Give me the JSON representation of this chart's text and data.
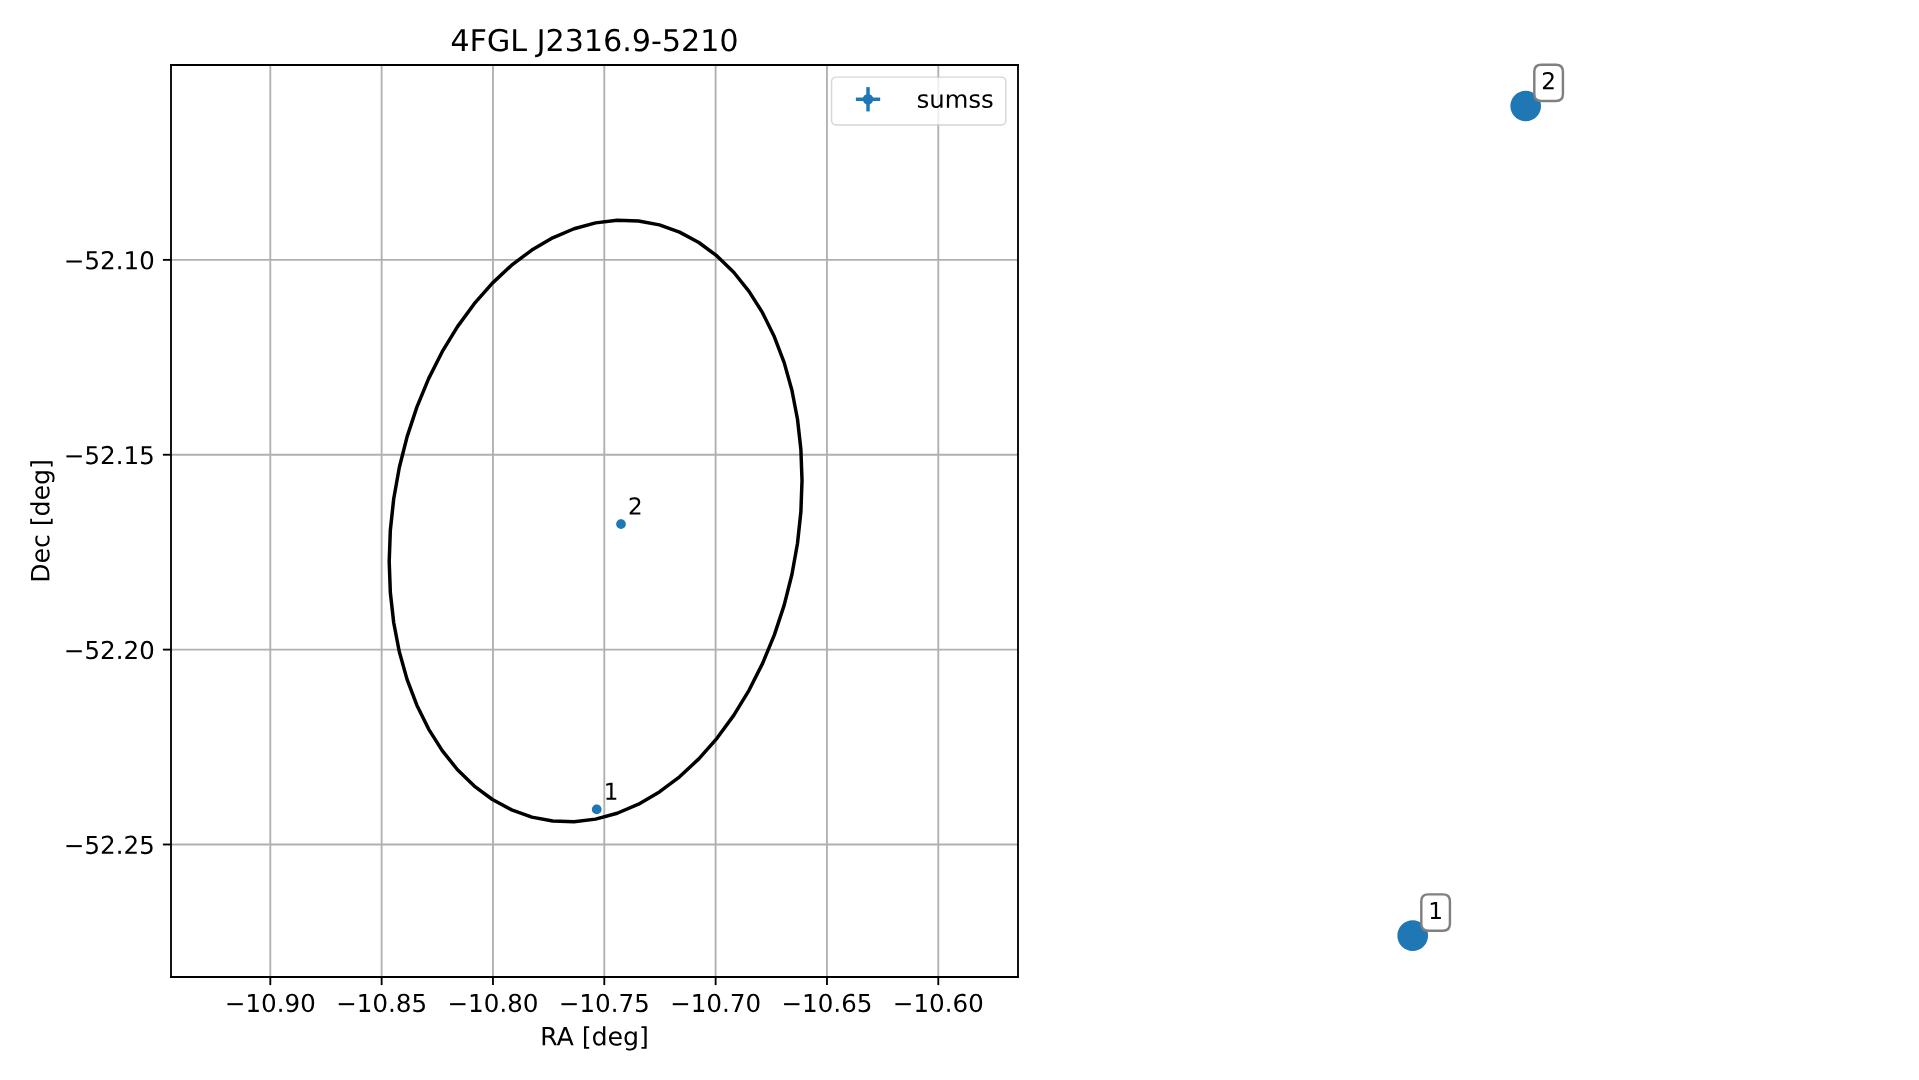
{
  "chart_data": [
    {
      "type": "scatter",
      "title": "4FGL J2316.9-5210",
      "xlabel": "RA [deg]",
      "ylabel": "Dec [deg]",
      "series": [
        {
          "name": "sumss",
          "color": "#1f77b4",
          "marker": "circle",
          "x": [
            -10.7534,
            -10.7425
          ],
          "values": [
            -52.241,
            -52.1678
          ]
        }
      ],
      "annotations": [
        {
          "text": "1",
          "x": -10.7534,
          "y": -52.241
        },
        {
          "text": "2",
          "x": -10.7425,
          "y": -52.1678
        }
      ],
      "xlim": [
        -10.9446,
        -10.5642
      ],
      "ylim": [
        -52.284,
        -52.05
      ],
      "xticks": [
        {
          "value": -10.9,
          "label": "−10.90"
        },
        {
          "value": -10.85,
          "label": "−10.85"
        },
        {
          "value": -10.8,
          "label": "−10.80"
        },
        {
          "value": -10.75,
          "label": "−10.75"
        },
        {
          "value": -10.7,
          "label": "−10.70"
        },
        {
          "value": -10.65,
          "label": "−10.65"
        },
        {
          "value": -10.6,
          "label": "−10.60"
        }
      ],
      "yticks": [
        {
          "value": -52.25,
          "label": "−52.25"
        },
        {
          "value": -52.2,
          "label": "−52.20"
        },
        {
          "value": -52.15,
          "label": "−52.15"
        },
        {
          "value": -52.1,
          "label": "−52.10"
        }
      ],
      "grid": true,
      "legend": "top right"
    },
    {
      "type": "other",
      "annotations": [
        "1",
        "2"
      ]
    }
  ]
}
